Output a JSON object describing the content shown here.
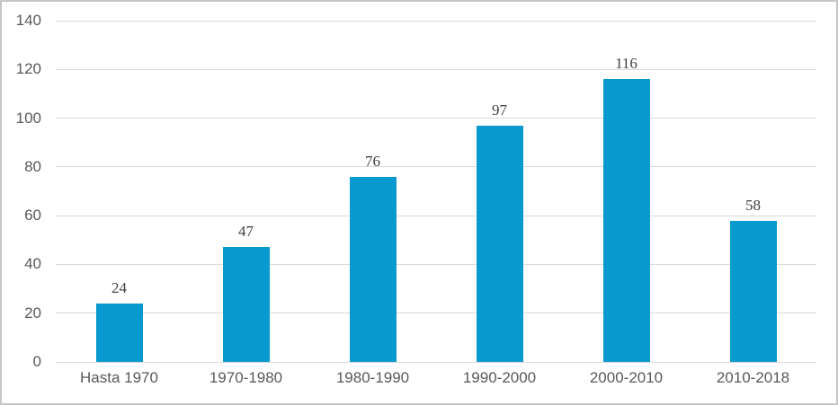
{
  "chart_data": {
    "type": "bar",
    "title": "",
    "xlabel": "",
    "ylabel": "",
    "categories": [
      "Hasta 1970",
      "1970-1980",
      "1980-1990",
      "1990-2000",
      "2000-2010",
      "2010-2018"
    ],
    "values": [
      24,
      47,
      76,
      97,
      116,
      58
    ],
    "data_labels": [
      "24",
      "47",
      "76",
      "97",
      "116",
      "58"
    ],
    "ylim": [
      0,
      140
    ],
    "yticks": [
      0,
      20,
      40,
      60,
      80,
      100,
      120,
      140
    ],
    "ytick_labels": [
      "0",
      "20",
      "40",
      "60",
      "80",
      "100",
      "120",
      "140"
    ],
    "grid": true,
    "legend_position": "none",
    "bar_color": "#0899ce",
    "gridline_color": "#d9d9d9",
    "axis_text_color": "#595959",
    "data_label_color": "#404040",
    "frame_border_color": "#c6c6c6"
  }
}
